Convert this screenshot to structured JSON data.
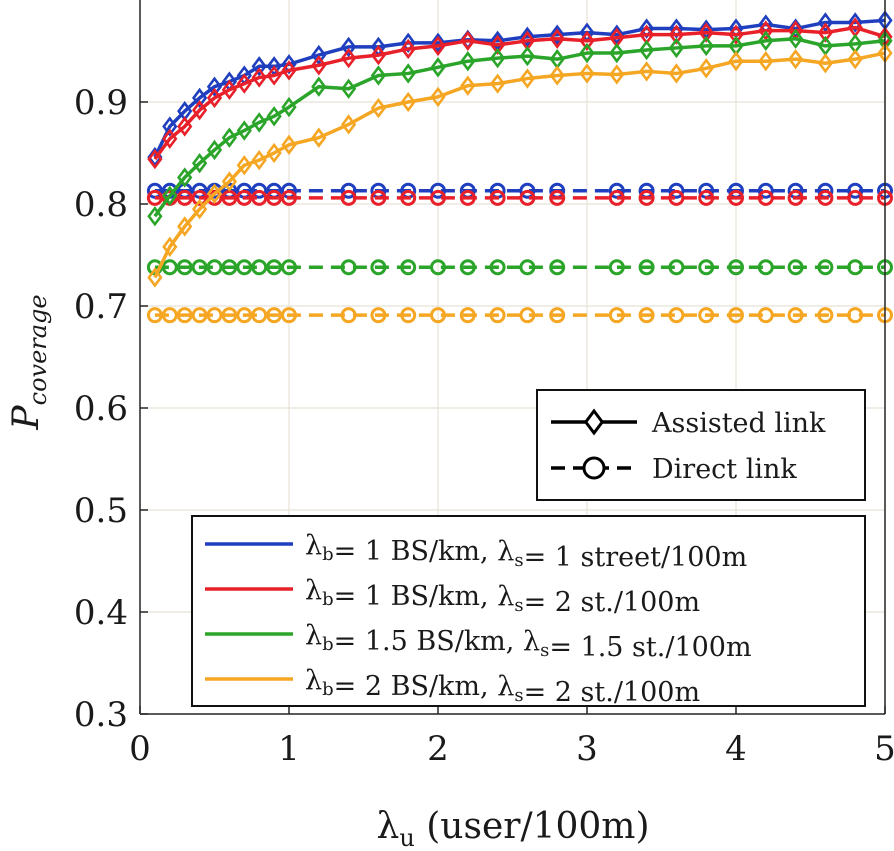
{
  "chart_data": {
    "type": "line",
    "xlabel": "λu (user/100m)",
    "ylabel": "Pcoverage",
    "xlim": [
      0,
      5
    ],
    "ylim": [
      0.3,
      1.0
    ],
    "xticks": [
      0,
      1,
      2,
      3,
      4,
      5
    ],
    "yticks": [
      0.3,
      0.4,
      0.5,
      0.6,
      0.7,
      0.8,
      0.9
    ],
    "grid": true,
    "legend_style": {
      "position": "right, middle",
      "entries": [
        {
          "label": "Assisted link",
          "linestyle": "solid",
          "marker": "diamond"
        },
        {
          "label": "Direct link",
          "linestyle": "dashed",
          "marker": "circle"
        }
      ]
    },
    "legend_params": {
      "position": "bottom-right",
      "entries": [
        {
          "label": "λb= 1 BS/km, λs= 1 street/100m",
          "color": "#1f3fbf"
        },
        {
          "label": "λb= 1 BS/km, λs= 2 st./100m",
          "color": "#e8202a"
        },
        {
          "label": "λb= 1.5 BS/km, λs= 1.5 st./100m",
          "color": "#2aa52a"
        },
        {
          "label": "λb= 2 BS/km, λs= 2 st./100m",
          "color": "#f5a623"
        }
      ]
    },
    "x_dense": [
      0.1,
      0.2,
      0.3,
      0.4,
      0.5,
      0.6,
      0.7,
      0.8,
      0.9,
      1.0,
      1.2,
      1.4,
      1.6,
      1.8,
      2.0,
      2.2,
      2.4,
      2.6,
      2.8,
      3.0,
      3.2,
      3.4,
      3.6,
      3.8,
      4.0,
      4.2,
      4.4,
      4.6,
      4.8,
      5.0
    ],
    "series": [
      {
        "color": "#1f3fbf",
        "linestyle": "solid",
        "marker": "diamond",
        "values": [
          0.846,
          0.876,
          0.891,
          0.904,
          0.915,
          0.92,
          0.926,
          0.935,
          0.935,
          0.937,
          0.946,
          0.954,
          0.954,
          0.958,
          0.958,
          0.961,
          0.96,
          0.964,
          0.966,
          0.968,
          0.966,
          0.972,
          0.972,
          0.971,
          0.972,
          0.976,
          0.972,
          0.978,
          0.978,
          0.98
        ]
      },
      {
        "color": "#e8202a",
        "linestyle": "solid",
        "marker": "diamond",
        "values": [
          0.844,
          0.864,
          0.876,
          0.892,
          0.904,
          0.912,
          0.918,
          0.924,
          0.926,
          0.931,
          0.936,
          0.943,
          0.946,
          0.952,
          0.955,
          0.96,
          0.956,
          0.96,
          0.962,
          0.96,
          0.963,
          0.966,
          0.966,
          0.968,
          0.966,
          0.97,
          0.97,
          0.968,
          0.973,
          0.964
        ]
      },
      {
        "color": "#2aa52a",
        "linestyle": "solid",
        "marker": "diamond",
        "values": [
          0.788,
          0.808,
          0.826,
          0.84,
          0.853,
          0.865,
          0.872,
          0.88,
          0.886,
          0.895,
          0.915,
          0.913,
          0.926,
          0.928,
          0.934,
          0.94,
          0.943,
          0.945,
          0.942,
          0.948,
          0.948,
          0.951,
          0.953,
          0.955,
          0.955,
          0.96,
          0.962,
          0.955,
          0.957,
          0.96
        ]
      },
      {
        "color": "#f5a623",
        "linestyle": "solid",
        "marker": "diamond",
        "values": [
          0.728,
          0.758,
          0.778,
          0.795,
          0.81,
          0.822,
          0.838,
          0.843,
          0.85,
          0.858,
          0.865,
          0.878,
          0.894,
          0.9,
          0.905,
          0.916,
          0.918,
          0.923,
          0.926,
          0.928,
          0.927,
          0.93,
          0.928,
          0.933,
          0.94,
          0.94,
          0.942,
          0.938,
          0.942,
          0.948
        ]
      }
    ],
    "x_sparse": [
      0.1,
      0.2,
      0.3,
      0.4,
      0.5,
      0.6,
      0.7,
      0.8,
      0.9,
      1.0,
      1.4,
      1.6,
      1.8,
      2.0,
      2.2,
      2.4,
      2.6,
      2.8,
      3.2,
      3.4,
      3.6,
      3.8,
      4.0,
      4.2,
      4.4,
      4.6,
      4.8,
      5.0
    ],
    "direct_series": [
      {
        "color": "#1f3fbf",
        "linestyle": "dashed",
        "marker": "circle",
        "value": 0.813
      },
      {
        "color": "#e8202a",
        "linestyle": "dashed",
        "marker": "circle",
        "value": 0.806
      },
      {
        "color": "#2aa52a",
        "linestyle": "dashed",
        "marker": "circle",
        "value": 0.738
      },
      {
        "color": "#f5a623",
        "linestyle": "dashed",
        "marker": "circle",
        "value": 0.691
      }
    ]
  }
}
